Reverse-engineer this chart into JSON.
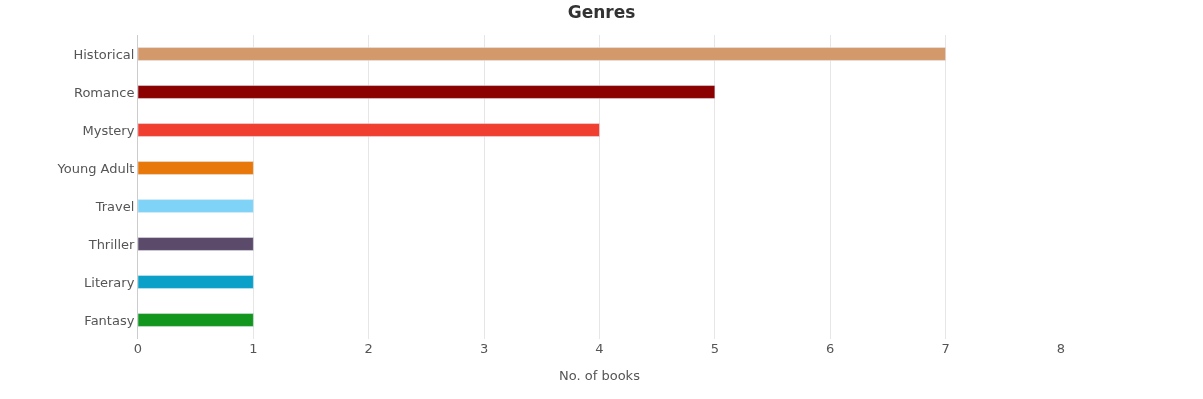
{
  "chart_data": {
    "type": "bar",
    "orientation": "horizontal",
    "title": "Genres",
    "xlabel": "No. of books",
    "categories": [
      "Historical",
      "Romance",
      "Mystery",
      "Young Adult",
      "Travel",
      "Thriller",
      "Literary",
      "Fantasy"
    ],
    "values": [
      7,
      5,
      4,
      1,
      1,
      1,
      1,
      1
    ],
    "colors": [
      "#d4996a",
      "#8b0000",
      "#f03e30",
      "#e8780a",
      "#7fd3f7",
      "#5c4a6b",
      "#0aa0c8",
      "#12961e"
    ],
    "xlim": [
      0,
      8
    ],
    "xticks": [
      0,
      1,
      2,
      3,
      4,
      5,
      6,
      7,
      8
    ],
    "grid": "x"
  }
}
